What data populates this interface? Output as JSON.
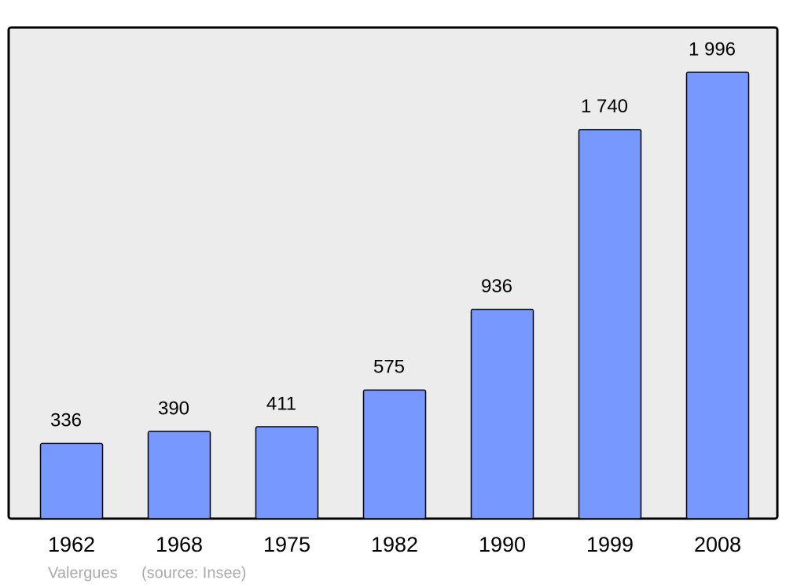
{
  "chart_data": {
    "type": "bar",
    "categories": [
      "1962",
      "1968",
      "1975",
      "1982",
      "1990",
      "1999",
      "2008"
    ],
    "values": [
      336,
      390,
      411,
      575,
      936,
      1740,
      1996
    ],
    "value_labels": [
      "336",
      "390",
      "411",
      "575",
      "936",
      "1 740",
      "1 996"
    ],
    "color": "#7799ff",
    "place": "Valergues",
    "source": "(source: Insee)"
  }
}
